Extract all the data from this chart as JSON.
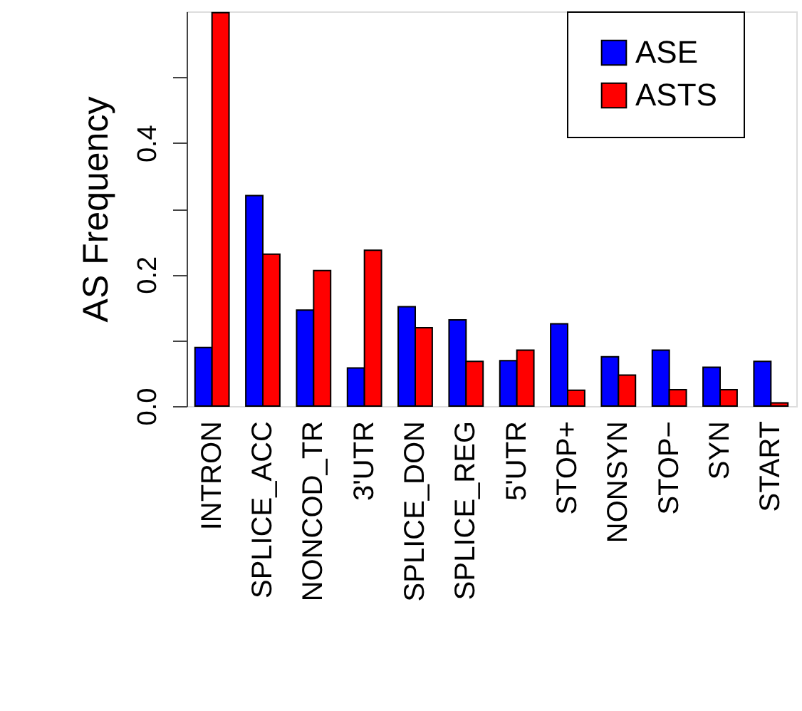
{
  "chart_data": {
    "type": "bar",
    "ylabel": "AS Frequency",
    "categories": [
      "INTRON",
      "SPLICE_ACC",
      "NONCOD_TR",
      "3'UTR",
      "SPLICE_DON",
      "SPLICE_REG",
      "5'UTR",
      "STOP+",
      "NONSYN",
      "STOP−",
      "SYN",
      "START"
    ],
    "series": [
      {
        "name": "ASE",
        "color": "#0000ff",
        "values": [
          0.089,
          0.32,
          0.146,
          0.058,
          0.151,
          0.131,
          0.069,
          0.125,
          0.075,
          0.085,
          0.059,
          0.068
        ]
      },
      {
        "name": "ASTS",
        "color": "#ff0000",
        "values": [
          0.598,
          0.231,
          0.206,
          0.237,
          0.119,
          0.068,
          0.085,
          0.024,
          0.047,
          0.025,
          0.025,
          0.005
        ]
      }
    ],
    "ylim": [
      0,
      0.6
    ],
    "yticks": [
      {
        "value": 0,
        "label": "0.0"
      },
      {
        "value": 0.1,
        "label": null
      },
      {
        "value": 0.2,
        "label": "0.2"
      },
      {
        "value": 0.3,
        "label": null
      },
      {
        "value": 0.4,
        "label": "0.4"
      },
      {
        "value": 0.5,
        "label": null
      }
    ],
    "grid": false,
    "legend": "top right"
  }
}
